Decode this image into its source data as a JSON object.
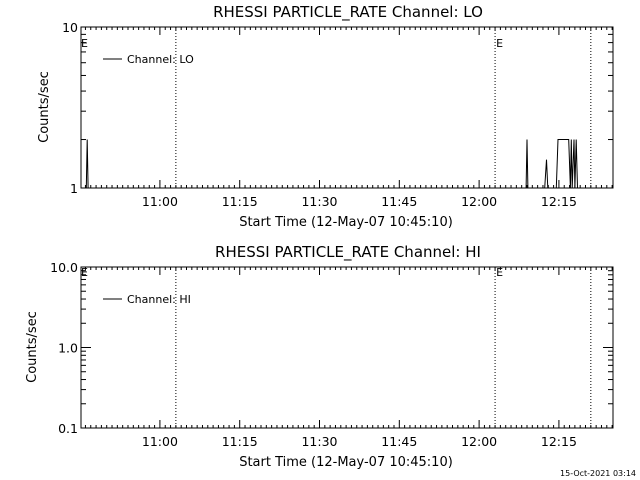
{
  "chart_data": [
    {
      "type": "line",
      "title": "RHESSI PARTICLE_RATE Channel: LO",
      "xlabel": "Start Time (12-May-07 10:45:10)",
      "ylabel": "Counts/sec",
      "yscale": "log",
      "xlim": [
        "10:45:10",
        "12:25:10"
      ],
      "ylim": [
        1,
        10
      ],
      "x_ticks": [
        "11:00",
        "11:15",
        "11:30",
        "11:45",
        "12:00",
        "12:15"
      ],
      "y_ticks": [
        "1",
        "10"
      ],
      "legend": {
        "placement": "top-left",
        "entries": [
          "Channel: LO"
        ]
      },
      "event_lines": [
        {
          "time": "11:03:00",
          "label": ""
        },
        {
          "time": "12:03:00",
          "label": "E"
        },
        {
          "time": "12:21:00",
          "label": ""
        }
      ],
      "start_marker_label": "E",
      "series": [
        {
          "name": "Channel: LO",
          "points": [
            [
              "10:46:10",
              1
            ],
            [
              "10:46:20",
              2
            ],
            [
              "10:46:30",
              1
            ],
            [
              "12:08:50",
              1
            ],
            [
              "12:09:00",
              2
            ],
            [
              "12:09:10",
              1
            ],
            [
              "12:12:20",
              1
            ],
            [
              "12:12:40",
              1.5
            ],
            [
              "12:12:55",
              1
            ],
            [
              "12:14:30",
              1
            ],
            [
              "12:14:50",
              2
            ],
            [
              "12:16:50",
              2
            ],
            [
              "12:17:10",
              1
            ],
            [
              "12:17:20",
              2
            ],
            [
              "12:17:30",
              1
            ],
            [
              "12:17:50",
              2
            ],
            [
              "12:18:00",
              1
            ],
            [
              "12:18:15",
              2
            ],
            [
              "12:18:30",
              1
            ]
          ]
        }
      ]
    },
    {
      "type": "line",
      "title": "RHESSI PARTICLE_RATE Channel: HI",
      "xlabel": "Start Time (12-May-07 10:45:10)",
      "ylabel": "Counts/sec",
      "yscale": "log",
      "xlim": [
        "10:45:10",
        "12:25:10"
      ],
      "ylim": [
        0.1,
        10
      ],
      "x_ticks": [
        "11:00",
        "11:15",
        "11:30",
        "11:45",
        "12:00",
        "12:15"
      ],
      "y_ticks": [
        "0.1",
        "1.0",
        "10.0"
      ],
      "legend": {
        "placement": "top-left",
        "entries": [
          "Channel: HI"
        ]
      },
      "event_lines": [
        {
          "time": "11:03:00",
          "label": ""
        },
        {
          "time": "12:03:00",
          "label": "E"
        },
        {
          "time": "12:21:00",
          "label": ""
        }
      ],
      "start_marker_label": "E",
      "series": [
        {
          "name": "Channel: HI",
          "points": []
        }
      ]
    }
  ],
  "footer": {
    "timestamp": "15-Oct-2021 03:14"
  }
}
